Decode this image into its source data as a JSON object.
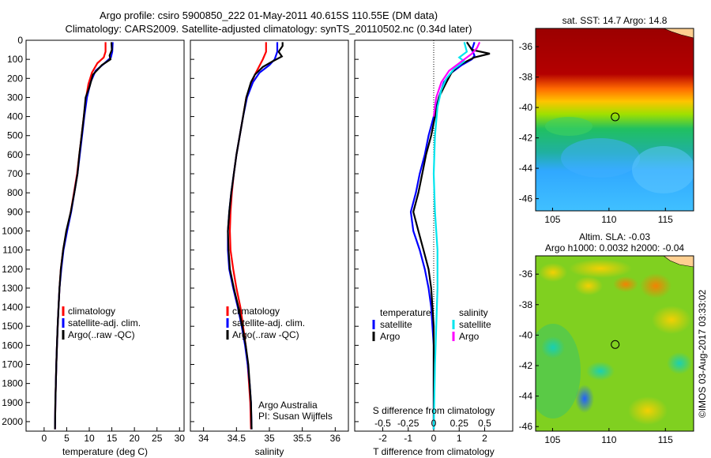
{
  "header": {
    "title_line1": "Argo profile: csiro 5900850_222 01-May-2011 40.615S 110.55E (DM data)",
    "title_line2": "Climatology: CARS2009. Satellite-adjusted climatology: synTS_20110502.nc (0.34d later)"
  },
  "colors": {
    "climatology": "#ff0000",
    "satellite": "#0000ff",
    "argo": "#000000",
    "sal_satellite": "#00e5ee",
    "sal_argo": "#ff00ff"
  },
  "credit": "©IMOS 03-Aug-2017 03:33:02",
  "chart_data": [
    {
      "type": "line",
      "name": "temperature panel",
      "xlabel": "temperature (deg C)",
      "ylabel": "",
      "xlim": [
        -4,
        31
      ],
      "ylim": [
        0,
        2050
      ],
      "xticks": [
        "0",
        "5",
        "10",
        "15",
        "20",
        "25",
        "30"
      ],
      "yticks": [
        "0",
        "100",
        "200",
        "300",
        "400",
        "500",
        "600",
        "700",
        "800",
        "900",
        "1000",
        "1100",
        "1200",
        "1300",
        "1400",
        "1500",
        "1600",
        "1700",
        "1800",
        "1900",
        "2000"
      ],
      "legend": [
        "climatology",
        "satellite-adj. clim.",
        "Argo(..raw -QC)"
      ],
      "series": [
        {
          "name": "climatology",
          "values": [
            [
              13.6,
              10
            ],
            [
              13.6,
              60
            ],
            [
              13.2,
              90
            ],
            [
              11.8,
              120
            ],
            [
              10.6,
              170
            ],
            [
              9.8,
              230
            ],
            [
              9.3,
              300
            ],
            [
              8.8,
              400
            ],
            [
              8.3,
              500
            ],
            [
              7.8,
              600
            ],
            [
              7.3,
              700
            ],
            [
              6.6,
              800
            ],
            [
              5.9,
              900
            ],
            [
              5.0,
              1000
            ],
            [
              4.2,
              1100
            ],
            [
              3.7,
              1200
            ],
            [
              3.4,
              1300
            ],
            [
              3.2,
              1400
            ],
            [
              3.0,
              1500
            ],
            [
              2.85,
              1600
            ],
            [
              2.7,
              1700
            ],
            [
              2.6,
              1800
            ],
            [
              2.5,
              1900
            ],
            [
              2.4,
              2040
            ]
          ]
        },
        {
          "name": "satellite-adj. clim.",
          "values": [
            [
              15.2,
              10
            ],
            [
              15.1,
              60
            ],
            [
              14.8,
              90
            ],
            [
              13.4,
              120
            ],
            [
              11.4,
              160
            ],
            [
              10.3,
              220
            ],
            [
              9.5,
              300
            ],
            [
              8.9,
              400
            ],
            [
              8.4,
              500
            ],
            [
              7.9,
              600
            ],
            [
              7.4,
              700
            ],
            [
              6.7,
              800
            ],
            [
              6.0,
              900
            ],
            [
              5.1,
              1000
            ],
            [
              4.3,
              1100
            ],
            [
              3.8,
              1200
            ],
            [
              3.4,
              1300
            ],
            [
              3.2,
              1400
            ],
            [
              3.0,
              1500
            ],
            [
              2.85,
              1600
            ],
            [
              2.7,
              1700
            ],
            [
              2.6,
              1800
            ],
            [
              2.5,
              1900
            ],
            [
              2.4,
              2040
            ]
          ]
        },
        {
          "name": "Argo(..raw -QC)",
          "values": [
            [
              14.9,
              10
            ],
            [
              15.0,
              50
            ],
            [
              14.5,
              80
            ],
            [
              14.7,
              100
            ],
            [
              12.8,
              130
            ],
            [
              10.8,
              180
            ],
            [
              10.1,
              240
            ],
            [
              9.2,
              300
            ],
            [
              8.8,
              400
            ],
            [
              8.3,
              500
            ],
            [
              7.8,
              600
            ],
            [
              7.4,
              700
            ],
            [
              6.7,
              800
            ],
            [
              5.9,
              900
            ],
            [
              4.9,
              1000
            ],
            [
              4.2,
              1100
            ],
            [
              3.7,
              1200
            ],
            [
              3.4,
              1300
            ],
            [
              3.2,
              1400
            ],
            [
              3.0,
              1500
            ],
            [
              2.85,
              1600
            ],
            [
              2.7,
              1700
            ],
            [
              2.6,
              1800
            ],
            [
              2.5,
              1900
            ],
            [
              2.4,
              2040
            ]
          ]
        }
      ]
    },
    {
      "type": "line",
      "name": "salinity panel",
      "xlabel": "salinity",
      "xlim": [
        33.8,
        36.2
      ],
      "ylim": [
        0,
        2050
      ],
      "xticks": [
        "34",
        "34.5",
        "35",
        "35.5",
        "36"
      ],
      "legend": [
        "climatology",
        "satellite-adj. clim.",
        "Argo(..raw -QC)"
      ],
      "annotation": [
        "Argo Australia",
        "PI: Susan Wijffels"
      ],
      "series": [
        {
          "name": "climatology",
          "values": [
            [
              34.95,
              10
            ],
            [
              34.95,
              60
            ],
            [
              34.9,
              100
            ],
            [
              34.84,
              140
            ],
            [
              34.78,
              180
            ],
            [
              34.72,
              230
            ],
            [
              34.65,
              300
            ],
            [
              34.6,
              400
            ],
            [
              34.55,
              500
            ],
            [
              34.5,
              600
            ],
            [
              34.46,
              700
            ],
            [
              34.43,
              800
            ],
            [
              34.41,
              900
            ],
            [
              34.4,
              1000
            ],
            [
              34.41,
              1100
            ],
            [
              34.45,
              1200
            ],
            [
              34.5,
              1300
            ],
            [
              34.56,
              1400
            ],
            [
              34.6,
              1500
            ],
            [
              34.64,
              1600
            ],
            [
              34.67,
              1700
            ],
            [
              34.69,
              1800
            ],
            [
              34.71,
              1900
            ],
            [
              34.72,
              2040
            ]
          ]
        },
        {
          "name": "satellite-adj. clim.",
          "values": [
            [
              35.12,
              10
            ],
            [
              35.12,
              60
            ],
            [
              35.08,
              100
            ],
            [
              35.0,
              130
            ],
            [
              34.85,
              170
            ],
            [
              34.75,
              220
            ],
            [
              34.66,
              300
            ],
            [
              34.6,
              400
            ],
            [
              34.55,
              500
            ],
            [
              34.5,
              600
            ],
            [
              34.46,
              700
            ],
            [
              34.42,
              800
            ],
            [
              34.39,
              900
            ],
            [
              34.37,
              1000
            ],
            [
              34.37,
              1100
            ],
            [
              34.39,
              1200
            ],
            [
              34.45,
              1300
            ],
            [
              34.52,
              1400
            ],
            [
              34.58,
              1500
            ],
            [
              34.63,
              1600
            ],
            [
              34.67,
              1700
            ],
            [
              34.7,
              1800
            ],
            [
              34.72,
              1900
            ],
            [
              34.73,
              2040
            ]
          ]
        },
        {
          "name": "Argo(..raw -QC)",
          "values": [
            [
              35.2,
              10
            ],
            [
              35.2,
              30
            ],
            [
              35.14,
              60
            ],
            [
              35.19,
              85
            ],
            [
              35.05,
              110
            ],
            [
              34.9,
              140
            ],
            [
              34.78,
              180
            ],
            [
              34.72,
              220
            ],
            [
              34.65,
              300
            ],
            [
              34.6,
              400
            ],
            [
              34.55,
              500
            ],
            [
              34.5,
              600
            ],
            [
              34.46,
              700
            ],
            [
              34.42,
              800
            ],
            [
              34.39,
              900
            ],
            [
              34.37,
              1000
            ],
            [
              34.38,
              1100
            ],
            [
              34.4,
              1200
            ],
            [
              34.46,
              1300
            ],
            [
              34.53,
              1400
            ],
            [
              34.59,
              1500
            ],
            [
              34.64,
              1600
            ],
            [
              34.68,
              1700
            ],
            [
              34.7,
              1800
            ],
            [
              34.72,
              1900
            ],
            [
              34.73,
              2040
            ]
          ]
        }
      ]
    },
    {
      "type": "line",
      "name": "difference panel",
      "xlabel": "T difference from climatology",
      "xlabel_top": "S difference from climatology",
      "xlim": [
        -3.1,
        3.1
      ],
      "ylim": [
        0,
        2050
      ],
      "xticks": [
        "-2",
        "-1",
        "0",
        "1",
        "2"
      ],
      "xticks_top": [
        "-0.5",
        "-0.25",
        "0",
        "0.25",
        "0.5"
      ],
      "legend_temperature": {
        "title": "temperature",
        "items": [
          "satellite",
          "Argo"
        ]
      },
      "legend_salinity": {
        "title": "salinity",
        "items": [
          "satellite",
          "Argo"
        ]
      },
      "series": [
        {
          "name": "temperature satellite",
          "values": [
            [
              1.6,
              10
            ],
            [
              1.5,
              50
            ],
            [
              1.6,
              80
            ],
            [
              1.5,
              100
            ],
            [
              1.1,
              130
            ],
            [
              0.7,
              170
            ],
            [
              0.4,
              220
            ],
            [
              0.2,
              300
            ],
            [
              0.0,
              400
            ],
            [
              -0.2,
              500
            ],
            [
              -0.35,
              600
            ],
            [
              -0.55,
              700
            ],
            [
              -0.7,
              800
            ],
            [
              -0.9,
              900
            ],
            [
              -0.8,
              1000
            ],
            [
              -0.55,
              1100
            ],
            [
              -0.35,
              1200
            ],
            [
              -0.2,
              1300
            ],
            [
              -0.1,
              1400
            ],
            [
              -0.05,
              1500
            ],
            [
              0.0,
              1600
            ],
            [
              0.0,
              2040
            ]
          ]
        },
        {
          "name": "temperature Argo",
          "values": [
            [
              1.3,
              10
            ],
            [
              1.5,
              50
            ],
            [
              2.2,
              70
            ],
            [
              1.6,
              90
            ],
            [
              1.0,
              130
            ],
            [
              0.7,
              170
            ],
            [
              0.5,
              220
            ],
            [
              0.2,
              300
            ],
            [
              0.05,
              400
            ],
            [
              -0.1,
              500
            ],
            [
              -0.3,
              600
            ],
            [
              -0.45,
              700
            ],
            [
              -0.6,
              800
            ],
            [
              -0.8,
              900
            ],
            [
              -0.6,
              1000
            ],
            [
              -0.4,
              1100
            ],
            [
              -0.2,
              1200
            ],
            [
              -0.1,
              1300
            ],
            [
              -0.05,
              1400
            ],
            [
              0.0,
              1500
            ],
            [
              0.0,
              2040
            ]
          ]
        },
        {
          "name": "salinity satellite",
          "values": [
            [
              1.2,
              10
            ],
            [
              1.3,
              60
            ],
            [
              1.0,
              90
            ],
            [
              1.2,
              110
            ],
            [
              0.8,
              150
            ],
            [
              0.5,
              200
            ],
            [
              0.3,
              260
            ],
            [
              0.15,
              350
            ],
            [
              0.05,
              500
            ],
            [
              0.0,
              700
            ],
            [
              0.05,
              900
            ],
            [
              0.1,
              1000
            ],
            [
              0.15,
              1100
            ],
            [
              0.15,
              1300
            ],
            [
              0.1,
              1500
            ],
            [
              0.05,
              1700
            ],
            [
              0.0,
              2040
            ]
          ]
        },
        {
          "name": "salinity Argo",
          "values": [
            [
              1.8,
              10
            ],
            [
              1.7,
              40
            ],
            [
              1.5,
              70
            ],
            [
              1.3,
              90
            ],
            [
              1.0,
              120
            ],
            [
              0.6,
              160
            ],
            [
              0.3,
              220
            ],
            [
              0.1,
              300
            ],
            [
              0.0,
              400
            ]
          ]
        }
      ]
    },
    {
      "type": "heatmap",
      "name": "SST map",
      "title": "sat. SST: 14.7 Argo: 14.8",
      "xlim": [
        103.5,
        117.5
      ],
      "ylim": [
        -46.8,
        -34.8
      ],
      "xticks": [
        "105",
        "110",
        "115"
      ],
      "yticks": [
        "-36",
        "-38",
        "-40",
        "-42",
        "-44",
        "-46"
      ],
      "marker": {
        "lon": 110.55,
        "lat": -40.615
      }
    },
    {
      "type": "heatmap",
      "name": "SLA map",
      "title_line1": "Altim. SLA: -0.03",
      "title_line2": "Argo h1000: 0.0032 h2000: -0.04",
      "xlim": [
        103.5,
        117.5
      ],
      "ylim": [
        -46.3,
        -34.8
      ],
      "xticks": [
        "105",
        "110",
        "115"
      ],
      "yticks": [
        "-36",
        "-38",
        "-40",
        "-42",
        "-44",
        "-46"
      ],
      "marker": {
        "lon": 110.55,
        "lat": -40.615
      }
    }
  ]
}
